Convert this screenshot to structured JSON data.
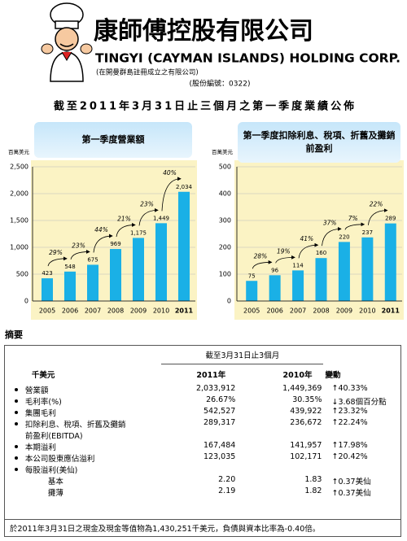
{
  "header": {
    "company_cn": "康師傅控股有限公司",
    "company_en": "TINGYI (CAYMAN ISLANDS) HOLDING CORP.",
    "incorporation": "(在開曼群島註冊成立之有限公司)",
    "stock_code": "(股份編號：0322)",
    "headline": "截至2011年3月31日止三個月之第一季度業績公佈"
  },
  "chart_data": [
    {
      "type": "bar",
      "title": "第一季度營業額",
      "y_label": "百萬美元",
      "categories": [
        "2005",
        "2006",
        "2007",
        "2008",
        "2009",
        "2010",
        "2011"
      ],
      "values": [
        423,
        548,
        675,
        969,
        1175,
        1449,
        2034
      ],
      "value_labels": [
        "423",
        "548",
        "675",
        "969",
        "1,175",
        "1,449",
        "2,034"
      ],
      "annotations": [
        "29%",
        "23%",
        "44%",
        "21%",
        "23%",
        "40%"
      ],
      "color": "#1ab0e6",
      "ylim": [
        0,
        2500
      ],
      "yticks": [
        0,
        500,
        {
          "value": 1000,
          "label": "1,000"
        },
        {
          "value": 1500,
          "label": "1,500"
        },
        {
          "value": 2000,
          "label": "2,000"
        },
        {
          "value": 2500,
          "label": "2,500"
        }
      ],
      "grid": true
    },
    {
      "type": "bar",
      "title": "第一季度扣除利息、稅項、折舊及攤銷前盈利",
      "y_label": "百萬美元",
      "categories": [
        "2005",
        "2006",
        "2007",
        "2008",
        "2009",
        "2010",
        "2011"
      ],
      "values": [
        75,
        96,
        114,
        160,
        220,
        237,
        289
      ],
      "annotations": [
        "28%",
        "19%",
        "41%",
        "37%",
        "7%",
        "22%"
      ],
      "color": "#1ab0e6",
      "ylim": [
        0,
        500
      ],
      "yticks": [
        0,
        100,
        200,
        300,
        400,
        500
      ],
      "grid": true
    }
  ],
  "summary": "摘要",
  "table": {
    "period": "截至3月31日止3個月",
    "columns": [
      "千美元",
      "2011年",
      "2010年",
      "變動"
    ],
    "rows": [
      [
        "營業額",
        "2,033,912",
        "1,449,369",
        "↑40.33%"
      ],
      [
        "毛利率(%)",
        "26.67%",
        "30.35%",
        "↓3.68個百分點"
      ],
      [
        "集團毛利",
        "542,527",
        "439,922",
        "↑23.32%"
      ],
      [
        "扣除利息、稅項、折舊及攤銷前盈利(EBITDA)",
        "289,317",
        "236,672",
        "↑22.24%"
      ],
      [
        "本期溢利",
        "167,484",
        "141,957",
        "↑17.98%"
      ],
      [
        "本公司股東應佔溢利",
        "123,035",
        "102,171",
        "↑20.42%"
      ]
    ],
    "eps": {
      "label": "每股溢利(美仙)",
      "rows": [
        [
          "基本",
          "2.20",
          "1.83",
          "↑0.37美仙"
        ],
        [
          "攤薄",
          "2.19",
          "1.82",
          "↑0.37美仙"
        ]
      ]
    },
    "footnote": "於2011年3月31日之現金及現金等值物為1,430,251千美元，負債與資本比率為-0.40倍。"
  }
}
